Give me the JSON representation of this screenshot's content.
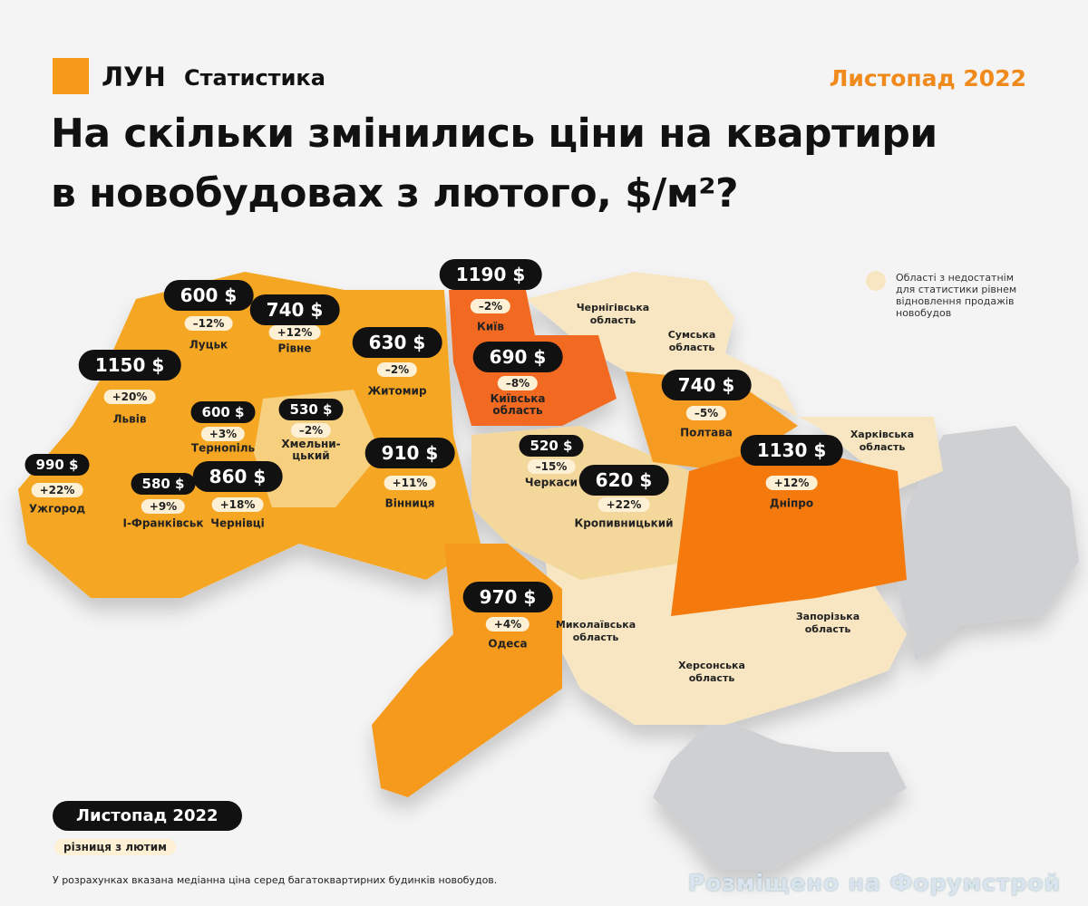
{
  "header": {
    "brand": "ЛУН",
    "brand_sub": "Статистика",
    "date": "Листопад 2022",
    "title_line1": "На скільки змінились ціни на квартири",
    "title_line2": "в новобудовах з лютого, $/м²?"
  },
  "cities": [
    {
      "price": "600 $",
      "change": "–12%",
      "name": "Луцьк"
    },
    {
      "price": "740 $",
      "change": "+12%",
      "name": "Рівне"
    },
    {
      "price": "1190 $",
      "change": "–2%",
      "name": "Київ"
    },
    {
      "price": "630 $",
      "change": "–2%",
      "name": "Житомир"
    },
    {
      "price": "690 $",
      "change": "–8%",
      "name": "Київська\nобласть"
    },
    {
      "price": "1150 $",
      "change": "+20%",
      "name": "Львів"
    },
    {
      "price": "600 $",
      "change": "+3%",
      "name": "Тернопіль"
    },
    {
      "price": "530 $",
      "change": "–2%",
      "name": "Хмельни-\nцький"
    },
    {
      "price": "740 $",
      "change": "–5%",
      "name": "Полтава"
    },
    {
      "price": "910 $",
      "change": "+11%",
      "name": "Вінниця"
    },
    {
      "price": "520 $",
      "change": "–15%",
      "name": "Черкаси"
    },
    {
      "price": "1130 $",
      "change": "+12%",
      "name": "Дніпро"
    },
    {
      "price": "990 $",
      "change": "+22%",
      "name": "Ужгород"
    },
    {
      "price": "580 $",
      "change": "+9%",
      "name": "І-Франківськ"
    },
    {
      "price": "860 $",
      "change": "+18%",
      "name": "Чернівці"
    },
    {
      "price": "620 $",
      "change": "+22%",
      "name": "Кропивницький"
    },
    {
      "price": "970 $",
      "change": "+4%",
      "name": "Одеса"
    }
  ],
  "regions": [
    {
      "name": "Чернігівська\nобласть"
    },
    {
      "name": "Сумська\nобласть"
    },
    {
      "name": "Харківська\nобласть"
    },
    {
      "name": "Миколаївська\nобласть"
    },
    {
      "name": "Запорізька\nобласть"
    },
    {
      "name": "Херсонська\nобласть"
    }
  ],
  "legend": {
    "note": "Області з недостатнім\nдля статистики рівнем\nвідновлення продажів\nновобудов",
    "price_key": "Листопад 2022",
    "change_key": "різниця з лютим"
  },
  "footnote": "У розрахунках вказана медіанна ціна серед багатоквартирних будинків новобудов.",
  "watermark": "Розміщено на Форумстрой"
}
